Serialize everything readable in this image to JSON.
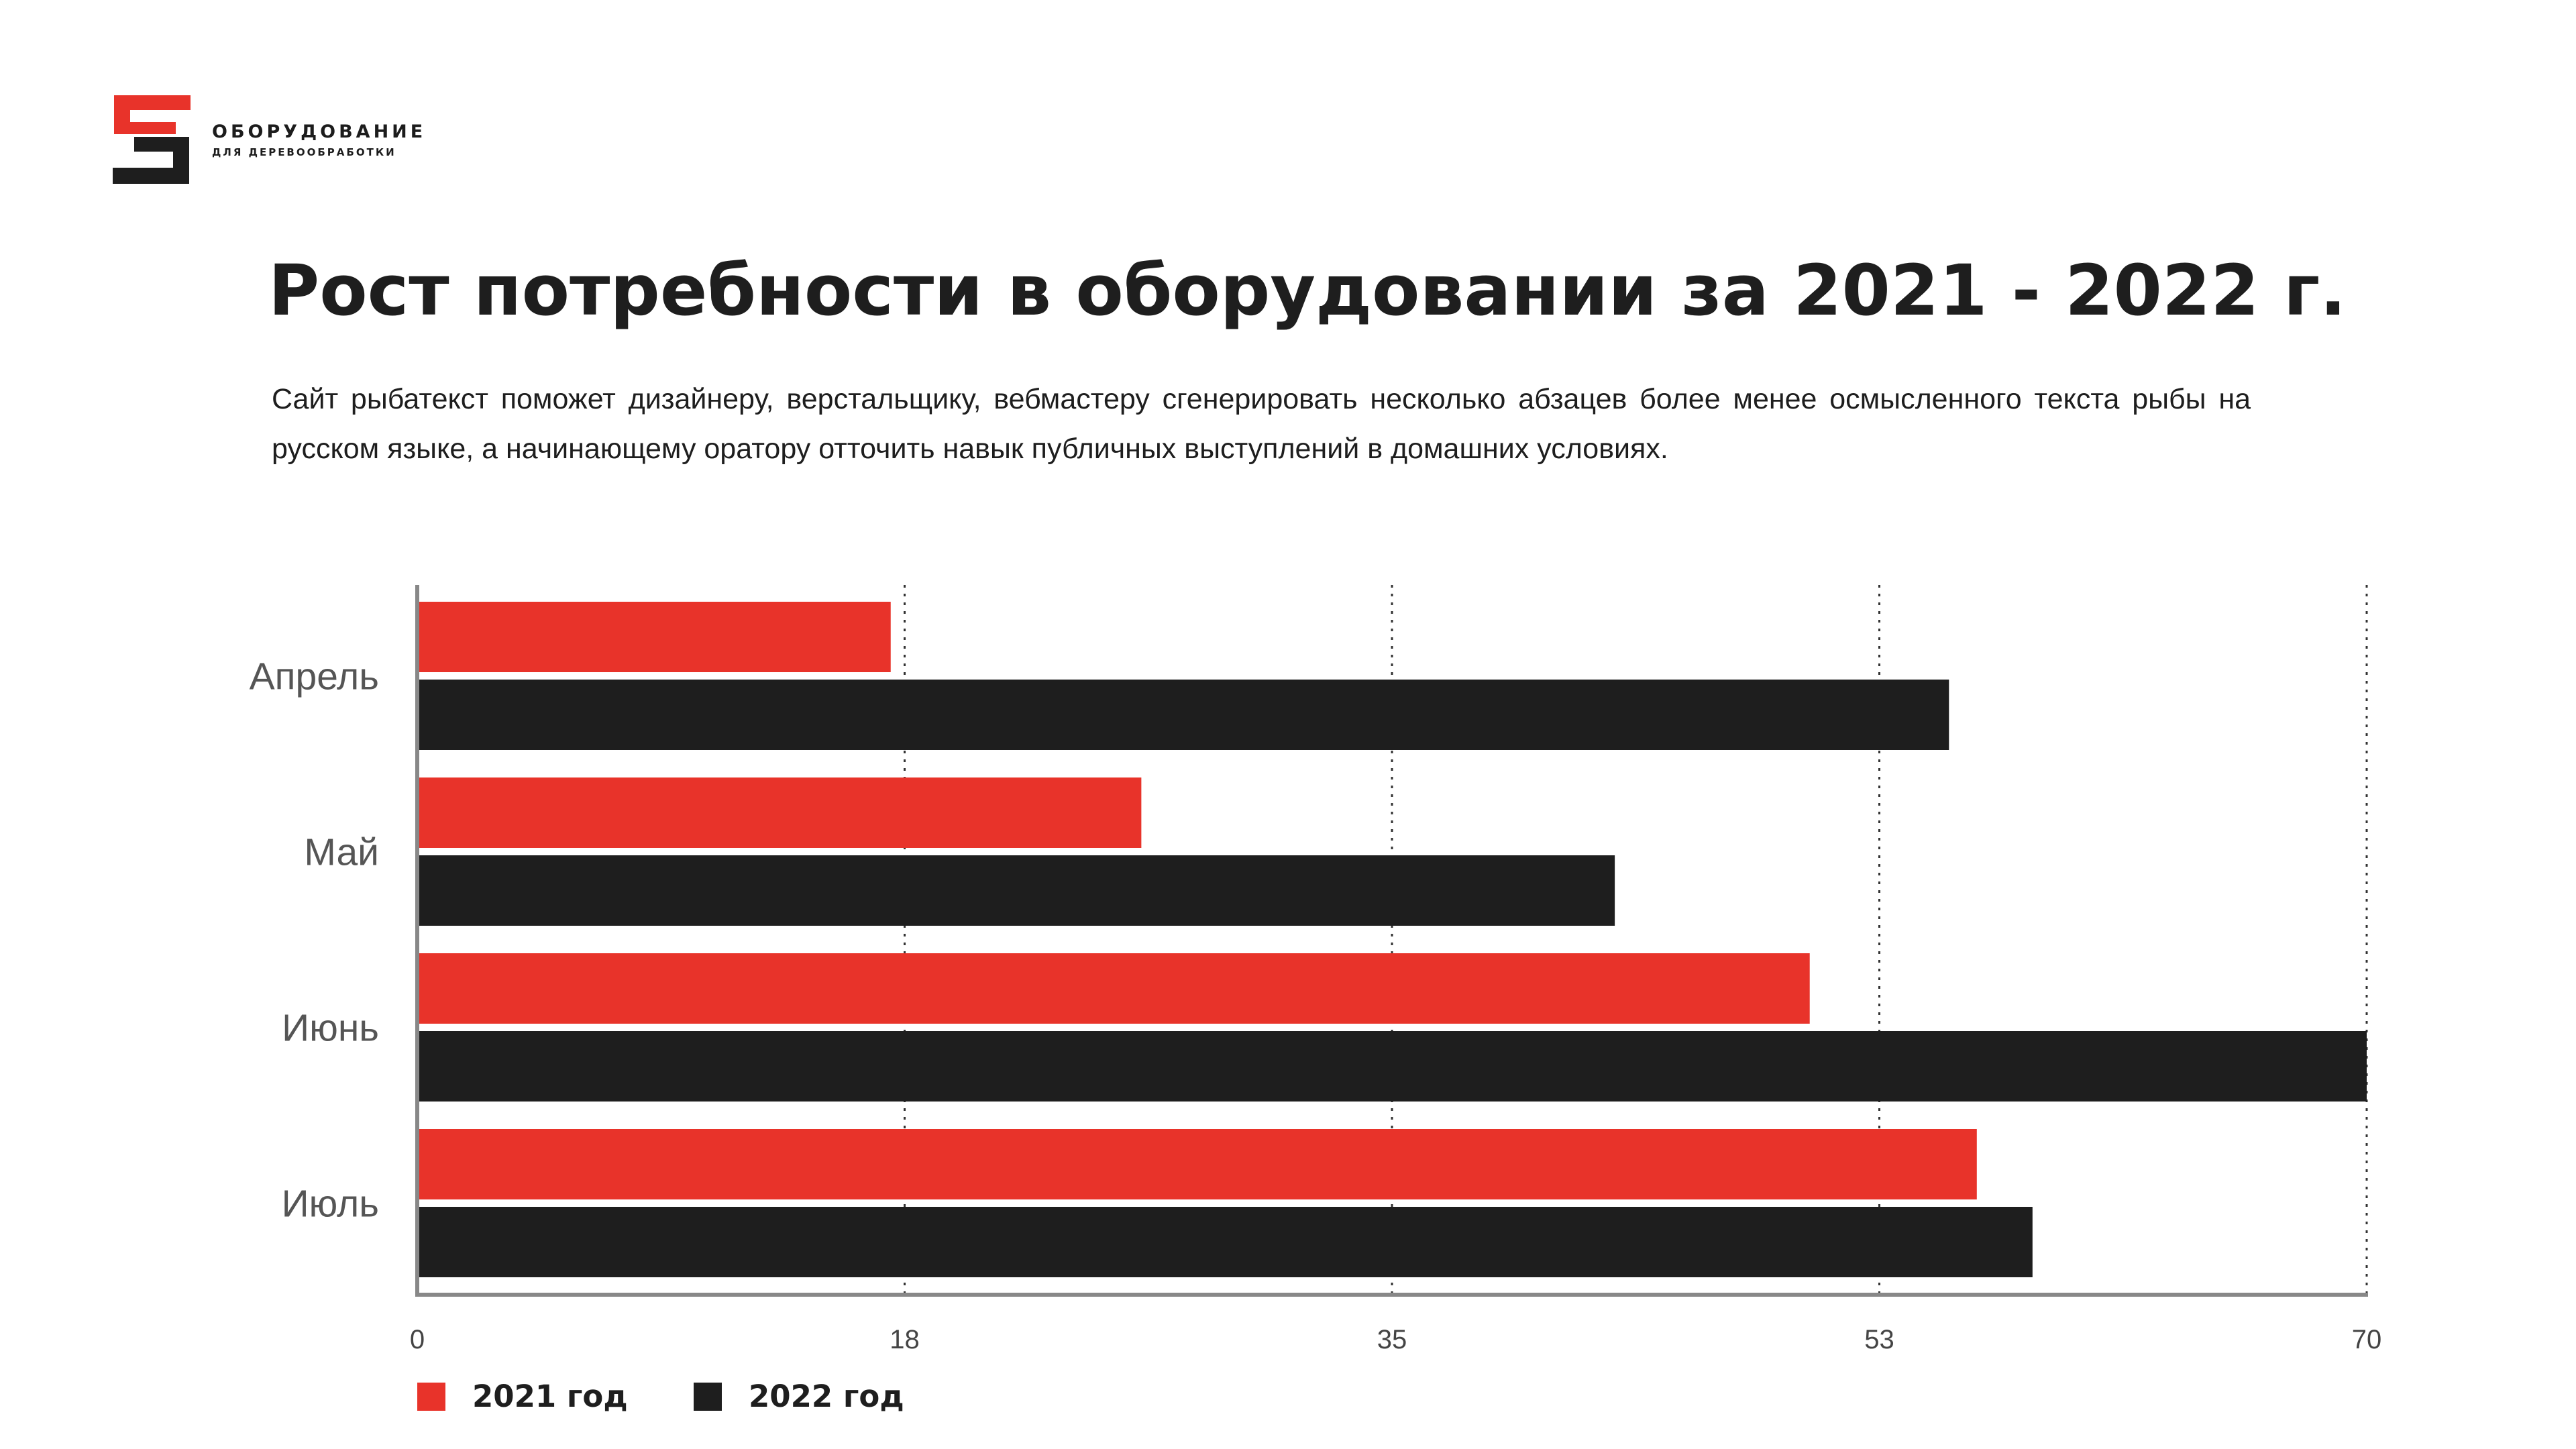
{
  "logo": {
    "line1": "ОБОРУДОВАНИЕ",
    "line2": "ДЛЯ ДЕРЕВООБРАБОТКИ",
    "accent_color": "#e8332a",
    "dark_color": "#1e1e1e"
  },
  "title": "Рост потребности в оборудовании за 2021 - 2022 г.",
  "description": "Сайт рыбатекст поможет дизайнеру, верстальщику, вебмастеру сгенерировать несколько абзацев более менее осмысленного текста рыбы на русском языке, а начинающему оратору отточить навык публичных выступлений в домашних условиях.",
  "chart_data": {
    "type": "bar",
    "orientation": "horizontal",
    "categories": [
      "Апрель",
      "Май",
      "Июнь",
      "Июль"
    ],
    "series": [
      {
        "name": "2021 год",
        "color": "#e8332a",
        "values": [
          17,
          26,
          50,
          56
        ]
      },
      {
        "name": "2022 год",
        "color": "#1e1e1e",
        "values": [
          55,
          43,
          70,
          58
        ]
      }
    ],
    "x_ticks": [
      "0",
      "18",
      "35",
      "53",
      "70"
    ],
    "xlim": [
      0,
      70
    ],
    "grid": "vertical dotted",
    "legend_position": "bottom-left"
  }
}
